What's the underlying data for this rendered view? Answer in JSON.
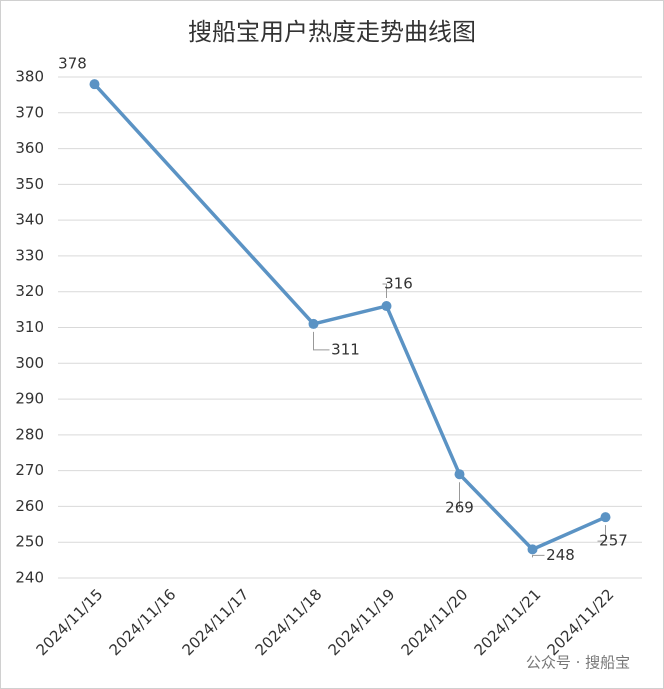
{
  "chart_data": {
    "type": "line",
    "title": "搜船宝用户热度走势曲线图",
    "x": [
      "2024/11/15",
      "2024/11/18",
      "2024/11/19",
      "2024/11/20",
      "2024/11/21",
      "2024/11/22"
    ],
    "values": [
      378,
      311,
      316,
      269,
      248,
      257
    ],
    "xticks": [
      "2024/11/15",
      "2024/11/16",
      "2024/11/17",
      "2024/11/18",
      "2024/11/19",
      "2024/11/20",
      "2024/11/21",
      "2024/11/22"
    ],
    "ylim": [
      240,
      380
    ],
    "yticks": [
      240,
      250,
      260,
      270,
      280,
      290,
      300,
      310,
      320,
      330,
      340,
      350,
      360,
      370,
      380
    ],
    "grid": true,
    "color": "#5b93c4",
    "watermark": "公众号 · 搜船宝"
  }
}
